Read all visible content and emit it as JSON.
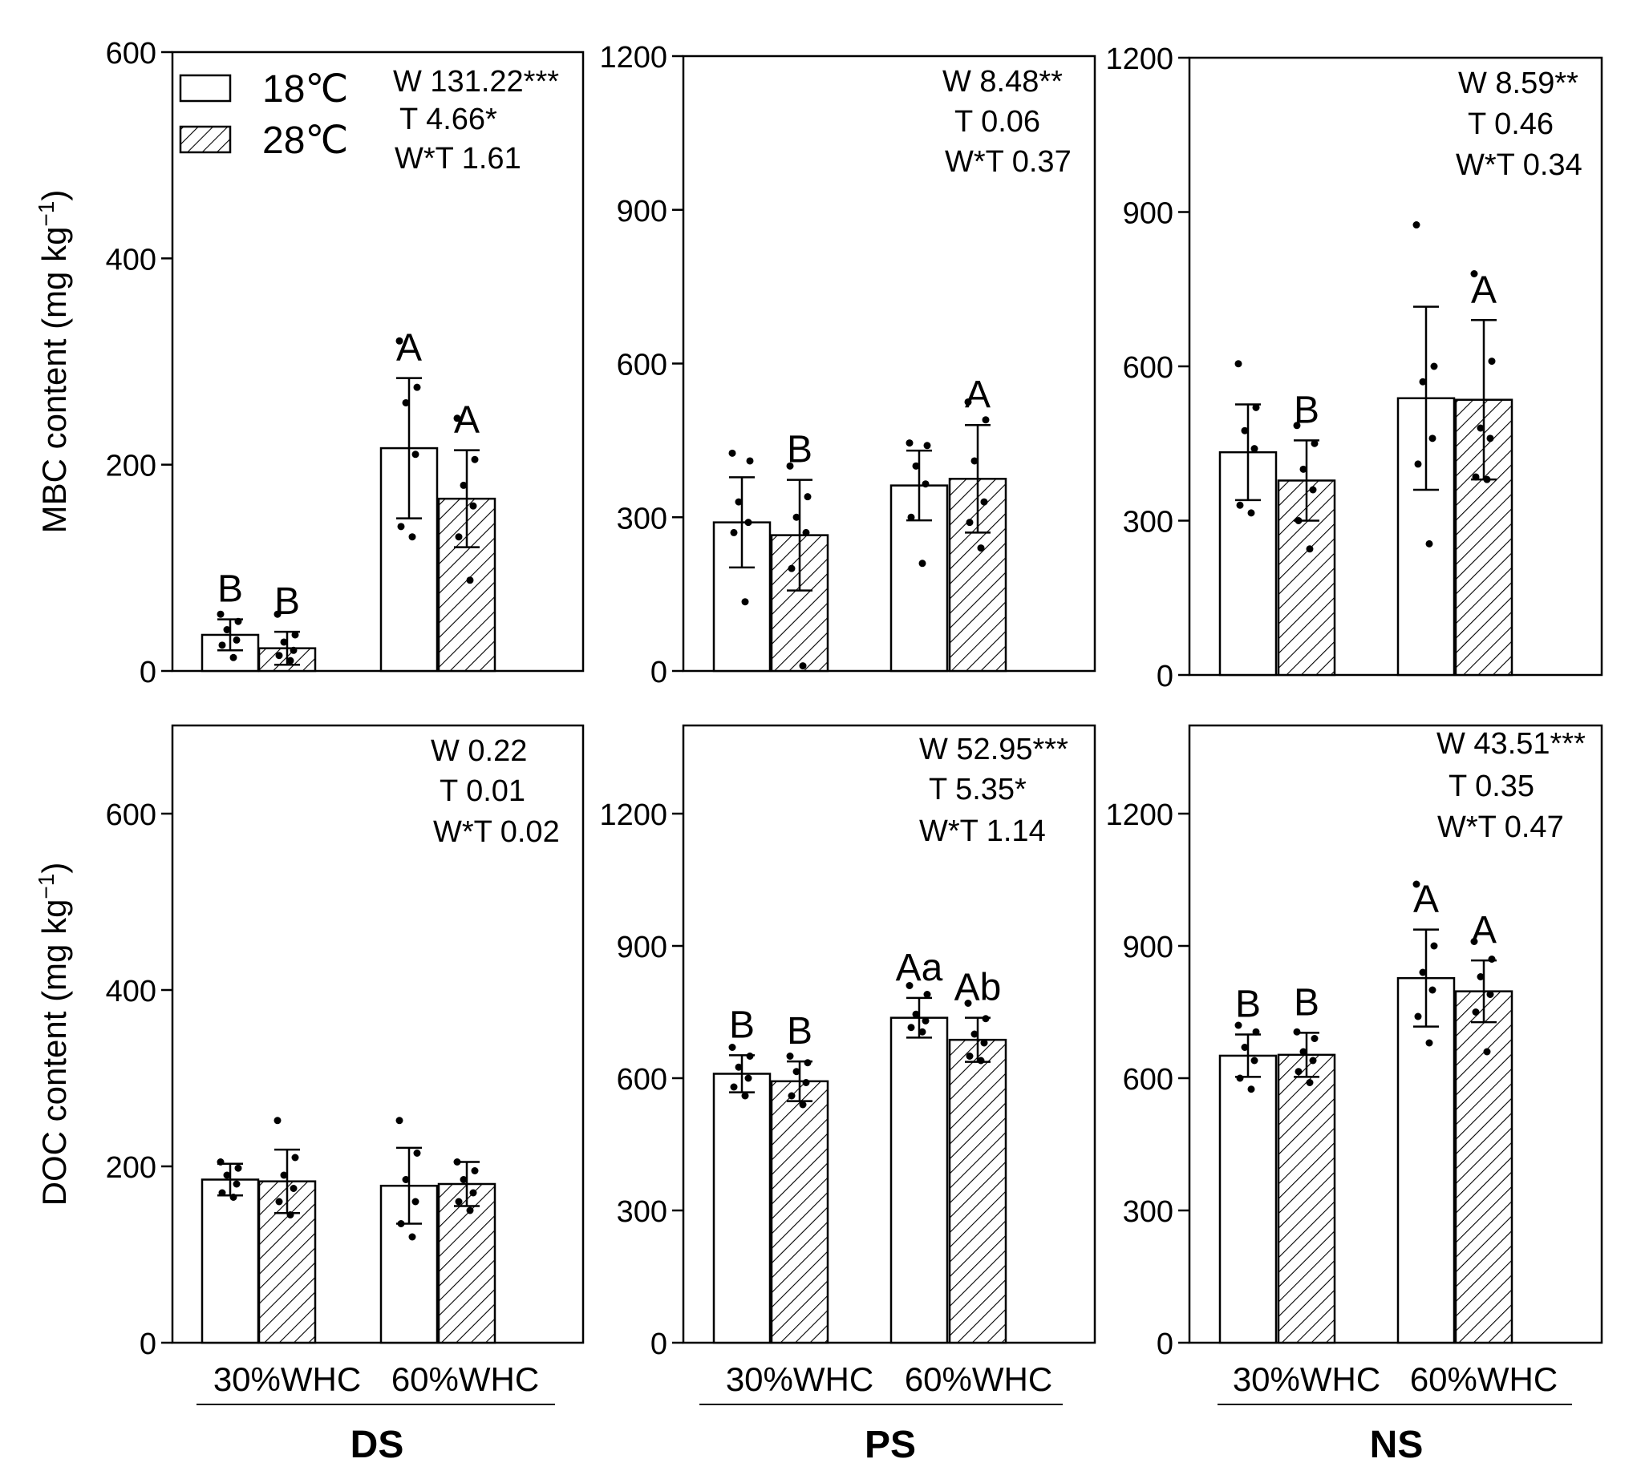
{
  "chart_data": [
    {
      "type": "bar",
      "panel": "MBC-DS",
      "ylim": [
        0,
        600
      ],
      "yticks": [
        0,
        200,
        400,
        600
      ],
      "ylabel": "MBC content (mg kg",
      "ylabel_sup": "−1",
      "ylabel_end": ")",
      "categories": [
        "30%WHC",
        "60%WHC"
      ],
      "series": [
        {
          "name": "18℃",
          "values": [
            35,
            216
          ],
          "errors": [
            15,
            68
          ],
          "letters": [
            "B",
            "A"
          ],
          "points": [
            [
              55,
              48,
              40,
              30,
              25,
              13
            ],
            [
              320,
              275,
              260,
              210,
              140,
              130
            ]
          ]
        },
        {
          "name": "28℃",
          "values": [
            22,
            167
          ],
          "errors": [
            16,
            47
          ],
          "letters": [
            "B",
            "A"
          ],
          "points": [
            [
              55,
              35,
              28,
              20,
              15,
              10
            ],
            [
              245,
              205,
              180,
              160,
              130,
              88
            ]
          ]
        }
      ],
      "stats": [
        "W 131.22***",
        "T 4.66*",
        "W*T 1.61"
      ]
    },
    {
      "type": "bar",
      "panel": "MBC-PS",
      "ylim": [
        0,
        1200
      ],
      "yticks": [
        0,
        300,
        600,
        900,
        1200
      ],
      "categories": [
        "30%WHC",
        "60%WHC"
      ],
      "series": [
        {
          "name": "18℃",
          "values": [
            290,
            362
          ],
          "errors": [
            88,
            68
          ],
          "letters": [
            "",
            ""
          ],
          "points": [
            [
              425,
              410,
              330,
              290,
              270,
              135
            ],
            [
              445,
              440,
              400,
              365,
              300,
              210
            ]
          ]
        },
        {
          "name": "28℃",
          "values": [
            265,
            375
          ],
          "errors": [
            108,
            105
          ],
          "letters": [
            "B",
            "A"
          ],
          "points": [
            [
              400,
              340,
              300,
              270,
              200,
              10
            ],
            [
              525,
              490,
              410,
              330,
              290,
              240
            ]
          ]
        }
      ],
      "stats": [
        "W 8.48**",
        "T 0.06",
        "W*T 0.37"
      ]
    },
    {
      "type": "bar",
      "panel": "MBC-NS",
      "ylim": [
        0,
        1200
      ],
      "yticks": [
        0,
        300,
        600,
        900,
        1200
      ],
      "categories": [
        "30%WHC",
        "60%WHC"
      ],
      "series": [
        {
          "name": "18℃",
          "values": [
            433,
            538
          ],
          "errors": [
            93,
            178
          ],
          "letters": [
            "",
            ""
          ],
          "points": [
            [
              605,
              520,
              475,
              440,
              330,
              315
            ],
            [
              875,
              600,
              570,
              460,
              410,
              255
            ]
          ]
        },
        {
          "name": "28℃",
          "values": [
            378,
            535
          ],
          "errors": [
            78,
            155
          ],
          "letters": [
            "B",
            "A"
          ],
          "points": [
            [
              485,
              450,
              400,
              360,
              300,
              245
            ],
            [
              780,
              610,
              480,
              460,
              385,
              380
            ]
          ]
        }
      ],
      "stats": [
        "W 8.59**",
        "T 0.46",
        "W*T 0.34"
      ]
    },
    {
      "type": "bar",
      "panel": "DOC-DS",
      "ylim": [
        0,
        700
      ],
      "yticks": [
        0,
        200,
        400,
        600
      ],
      "ylabel": "DOC content (mg kg",
      "ylabel_sup": "−1",
      "ylabel_end": ")",
      "categories": [
        "30%WHC",
        "60%WHC"
      ],
      "series": [
        {
          "name": "18℃",
          "values": [
            185,
            178
          ],
          "errors": [
            18,
            43
          ],
          "letters": [
            "",
            ""
          ],
          "points": [
            [
              205,
              198,
              190,
              180,
              170,
              165
            ],
            [
              252,
              215,
              185,
              160,
              135,
              120
            ]
          ]
        },
        {
          "name": "28℃",
          "values": [
            183,
            180
          ],
          "errors": [
            36,
            25
          ],
          "letters": [
            "",
            ""
          ],
          "points": [
            [
              252,
              210,
              190,
              175,
              160,
              145
            ],
            [
              205,
              195,
              185,
              170,
              160,
              150
            ]
          ]
        }
      ],
      "stats": [
        "W 0.22",
        "T 0.01",
        "W*T 0.02"
      ]
    },
    {
      "type": "bar",
      "panel": "DOC-PS",
      "ylim": [
        0,
        1400
      ],
      "yticks": [
        0,
        300,
        600,
        900,
        1200
      ],
      "categories": [
        "30%WHC",
        "60%WHC"
      ],
      "series": [
        {
          "name": "18℃",
          "values": [
            610,
            737
          ],
          "errors": [
            42,
            45
          ],
          "letters": [
            "B",
            "Aa"
          ],
          "points": [
            [
              670,
              650,
              625,
              600,
              580,
              560
            ],
            [
              810,
              790,
              745,
              730,
              715,
              705
            ]
          ]
        },
        {
          "name": "28℃",
          "values": [
            593,
            687
          ],
          "errors": [
            45,
            50
          ],
          "letters": [
            "B",
            "Ab"
          ],
          "points": [
            [
              650,
              635,
              615,
              590,
              560,
              540
            ],
            [
              770,
              735,
              700,
              680,
              650,
              640
            ]
          ]
        }
      ],
      "stats": [
        "W 52.95***",
        "T 5.35*",
        "W*T 1.14"
      ]
    },
    {
      "type": "bar",
      "panel": "DOC-NS",
      "ylim": [
        0,
        1400
      ],
      "yticks": [
        0,
        300,
        600,
        900,
        1200
      ],
      "categories": [
        "30%WHC",
        "60%WHC"
      ],
      "series": [
        {
          "name": "18℃",
          "values": [
            651,
            827
          ],
          "errors": [
            48,
            110
          ],
          "letters": [
            "B",
            "A"
          ],
          "points": [
            [
              720,
              705,
              670,
              640,
              600,
              575
            ],
            [
              1040,
              900,
              840,
              800,
              740,
              680
            ]
          ]
        },
        {
          "name": "28℃",
          "values": [
            653,
            797
          ],
          "errors": [
            50,
            70
          ],
          "letters": [
            "B",
            "A"
          ],
          "points": [
            [
              705,
              690,
              660,
              640,
              615,
              590
            ],
            [
              910,
              870,
              830,
              790,
              750,
              660
            ]
          ]
        }
      ],
      "stats": [
        "W 43.51***",
        "T 0.35",
        "W*T 0.47"
      ]
    }
  ],
  "legend": {
    "items": [
      {
        "label": "18℃",
        "pattern": "open"
      },
      {
        "label": "28℃",
        "pattern": "hatched"
      }
    ]
  },
  "groups": [
    "DS",
    "PS",
    "NS"
  ],
  "x_categories": [
    "30%WHC",
    "60%WHC"
  ]
}
